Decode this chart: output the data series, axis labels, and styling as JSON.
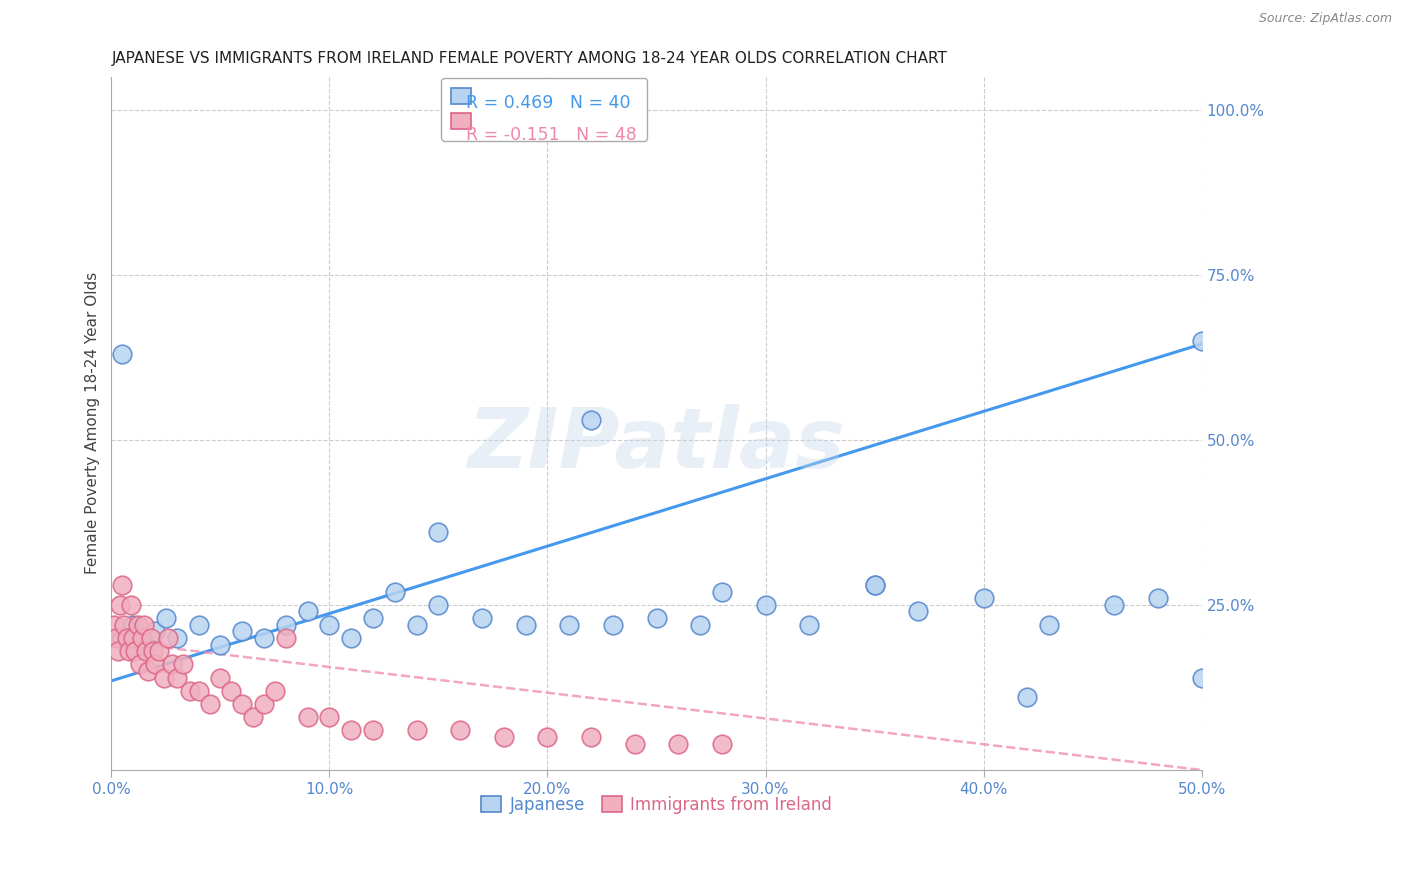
{
  "title": "JAPANESE VS IMMIGRANTS FROM IRELAND FEMALE POVERTY AMONG 18-24 YEAR OLDS CORRELATION CHART",
  "source": "Source: ZipAtlas.com",
  "ylabel": "Female Poverty Among 18-24 Year Olds",
  "xlim": [
    0.0,
    0.5
  ],
  "ylim": [
    0.0,
    1.05
  ],
  "watermark": "ZIPatlas",
  "R1": "0.469",
  "N1": "40",
  "R2": "-0.151",
  "N2": "48",
  "japanese_color": "#b8d4f0",
  "japanese_edge_color": "#5588cc",
  "ireland_color": "#f0b0c0",
  "ireland_edge_color": "#dd6688",
  "line1_color": "#4499ee",
  "line2_color": "#ee88aa",
  "grid_color": "#cccccc",
  "title_color": "#222222",
  "right_tick_color": "#5588cc",
  "bottom_tick_color": "#5588cc",
  "japanese_x": [
    0.005,
    0.01,
    0.015,
    0.02,
    0.025,
    0.03,
    0.04,
    0.05,
    0.06,
    0.07,
    0.08,
    0.09,
    0.1,
    0.11,
    0.12,
    0.13,
    0.14,
    0.15,
    0.17,
    0.19,
    0.21,
    0.23,
    0.25,
    0.27,
    0.3,
    0.32,
    0.35,
    0.37,
    0.4,
    0.43,
    0.46,
    0.48,
    0.5,
    0.15,
    0.22,
    0.28,
    0.35,
    0.42,
    0.5,
    0.005
  ],
  "japanese_y": [
    0.2,
    0.22,
    0.19,
    0.21,
    0.23,
    0.2,
    0.22,
    0.19,
    0.21,
    0.2,
    0.22,
    0.24,
    0.22,
    0.2,
    0.23,
    0.27,
    0.22,
    0.25,
    0.23,
    0.22,
    0.22,
    0.22,
    0.23,
    0.22,
    0.25,
    0.22,
    0.28,
    0.24,
    0.26,
    0.22,
    0.25,
    0.26,
    0.65,
    0.36,
    0.53,
    0.27,
    0.28,
    0.11,
    0.14,
    0.63
  ],
  "ireland_x": [
    0.001,
    0.002,
    0.003,
    0.004,
    0.005,
    0.006,
    0.007,
    0.008,
    0.009,
    0.01,
    0.011,
    0.012,
    0.013,
    0.014,
    0.015,
    0.016,
    0.017,
    0.018,
    0.019,
    0.02,
    0.022,
    0.024,
    0.026,
    0.028,
    0.03,
    0.033,
    0.036,
    0.04,
    0.045,
    0.05,
    0.055,
    0.06,
    0.065,
    0.07,
    0.075,
    0.08,
    0.09,
    0.1,
    0.11,
    0.12,
    0.14,
    0.16,
    0.18,
    0.2,
    0.22,
    0.24,
    0.26,
    0.28
  ],
  "ireland_y": [
    0.22,
    0.2,
    0.18,
    0.25,
    0.28,
    0.22,
    0.2,
    0.18,
    0.25,
    0.2,
    0.18,
    0.22,
    0.16,
    0.2,
    0.22,
    0.18,
    0.15,
    0.2,
    0.18,
    0.16,
    0.18,
    0.14,
    0.2,
    0.16,
    0.14,
    0.16,
    0.12,
    0.12,
    0.1,
    0.14,
    0.12,
    0.1,
    0.08,
    0.1,
    0.12,
    0.2,
    0.08,
    0.08,
    0.06,
    0.06,
    0.06,
    0.06,
    0.05,
    0.05,
    0.05,
    0.04,
    0.04,
    0.04
  ],
  "jp_line_x0": 0.0,
  "jp_line_y0": 0.135,
  "jp_line_x1": 0.5,
  "jp_line_y1": 0.645,
  "ir_line_x0": 0.0,
  "ir_line_y0": 0.195,
  "ir_line_x1": 0.5,
  "ir_line_y1": 0.0
}
